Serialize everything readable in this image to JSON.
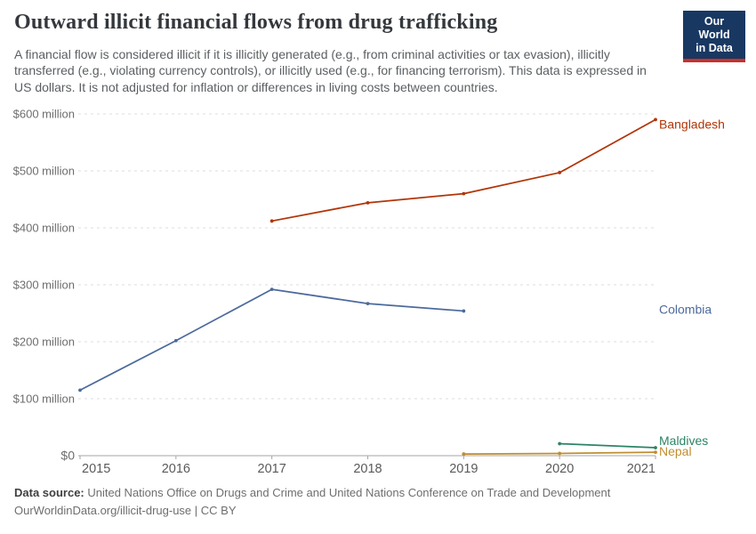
{
  "header": {
    "title": "Outward illicit financial flows from drug trafficking",
    "subtitle": "A financial flow is considered illicit if it is illicitly generated (e.g., from criminal activities or tax evasion), illicitly transferred (e.g., violating currency controls), or illicitly used (e.g., for financing terrorism). This data is expressed in US dollars. It is not adjusted for inflation or differences in living costs between countries.",
    "logo": {
      "line1": "Our World",
      "line2": "in Data",
      "bg_color": "#183862",
      "stripe_color": "#c9302c"
    }
  },
  "chart_data": {
    "type": "line",
    "title": "Outward illicit financial flows from drug trafficking",
    "unit": "US dollars",
    "grid": true,
    "legend_position": "right-edge-labels",
    "x": {
      "ticks": [
        2015,
        2016,
        2017,
        2018,
        2019,
        2020,
        2021
      ],
      "range": [
        2015,
        2021
      ]
    },
    "y": {
      "ticks": [
        0,
        100,
        200,
        300,
        400,
        500,
        600
      ],
      "tick_labels": [
        "$0",
        "$100 million",
        "$200 million",
        "$300 million",
        "$400 million",
        "$500 million",
        "$600 million"
      ],
      "range": [
        0,
        600
      ]
    },
    "series": [
      {
        "name": "Bangladesh",
        "color": "#b13507",
        "x": [
          2017,
          2018,
          2019,
          2020,
          2021
        ],
        "values": [
          412,
          444,
          460,
          497,
          590
        ],
        "label_dy": 5
      },
      {
        "name": "Colombia",
        "color": "#4c6a9c",
        "x": [
          2015,
          2016,
          2017,
          2018,
          2019
        ],
        "values": [
          115,
          202,
          292,
          267,
          254
        ],
        "label_dy": -2
      },
      {
        "name": "Maldives",
        "color": "#2c8465",
        "x": [
          2020,
          2021
        ],
        "values": [
          21,
          14
        ],
        "label_dy": -8
      },
      {
        "name": "Nepal",
        "color": "#bf8e30",
        "x": [
          2019,
          2020,
          2021
        ],
        "values": [
          3,
          4,
          6
        ],
        "label_dy": -1
      }
    ],
    "style": {
      "grid_color": "#dcdcdc",
      "axis_color": "#a6a6a6",
      "y_label_color": "#6e6e6e",
      "x_label_color": "#5a5a5a"
    }
  },
  "footer": {
    "source_label": "Data source:",
    "source_text": " United Nations Office on Drugs and Crime and United Nations Conference on Trade and Development",
    "url_line": "OurWorldinData.org/illicit-drug-use | CC BY"
  }
}
